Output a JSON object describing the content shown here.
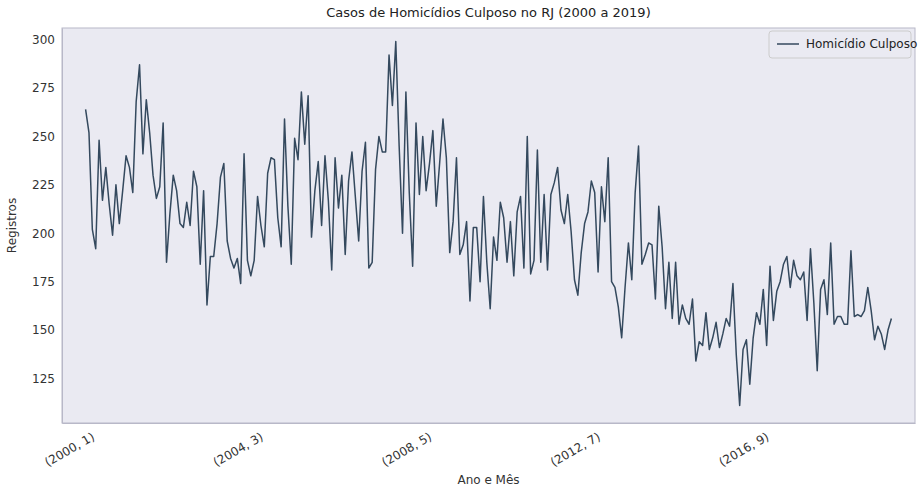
{
  "chart_data": {
    "type": "line",
    "title": "Casos de Homicídios Culposo no RJ (2000 a 2019)",
    "x_label": "Ano e Mês",
    "y_label": "Registros",
    "categories": [
      "(2000, 1)",
      null,
      null,
      null,
      null,
      null,
      null,
      null,
      null,
      null,
      null,
      null,
      null,
      null,
      null,
      null,
      null,
      null,
      null,
      null,
      null,
      null,
      null,
      null,
      null,
      null,
      null,
      null,
      null,
      null,
      null,
      null,
      null,
      null,
      null,
      null,
      null,
      null,
      null,
      null,
      null,
      null,
      null,
      null,
      null,
      null,
      null,
      null,
      null,
      null,
      "(2004, 3)",
      null,
      null,
      null,
      null,
      null,
      null,
      null,
      null,
      null,
      null,
      null,
      null,
      null,
      null,
      null,
      null,
      null,
      null,
      null,
      null,
      null,
      null,
      null,
      null,
      null,
      null,
      null,
      null,
      null,
      null,
      null,
      null,
      null,
      null,
      null,
      null,
      null,
      null,
      null,
      null,
      null,
      null,
      null,
      null,
      null,
      null,
      null,
      null,
      null,
      "(2008, 5)",
      null,
      null,
      null,
      null,
      null,
      null,
      null,
      null,
      null,
      null,
      null,
      null,
      null,
      null,
      null,
      null,
      null,
      null,
      null,
      null,
      null,
      null,
      null,
      null,
      null,
      null,
      null,
      null,
      null,
      null,
      null,
      null,
      null,
      null,
      null,
      null,
      null,
      null,
      null,
      null,
      null,
      null,
      null,
      null,
      null,
      null,
      null,
      null,
      null,
      "(2012, 7)",
      null,
      null,
      null,
      null,
      null,
      null,
      null,
      null,
      null,
      null,
      null,
      null,
      null,
      null,
      null,
      null,
      null,
      null,
      null,
      null,
      null,
      null,
      null,
      null,
      null,
      null,
      null,
      null,
      null,
      null,
      null,
      null,
      null,
      null,
      null,
      null,
      null,
      null,
      null,
      null,
      null,
      null,
      null,
      null,
      null,
      null,
      null,
      null,
      null,
      "(2016, 9)",
      null,
      null,
      null,
      null,
      null,
      null,
      null,
      null,
      null,
      null,
      null,
      null,
      null,
      null,
      null,
      null,
      null,
      null,
      null,
      null,
      null,
      null,
      null,
      null,
      null,
      null,
      null,
      null,
      null,
      null,
      null,
      null,
      null,
      null,
      null,
      null,
      null,
      null,
      null
    ],
    "series": [
      {
        "name": "Homicídio Culposo",
        "color": "#34495e",
        "values": [
          264,
          252,
          202,
          192,
          248,
          217,
          234,
          215,
          199,
          225,
          205,
          222,
          240,
          234,
          221,
          268,
          287,
          241,
          269,
          252,
          230,
          218,
          224,
          257,
          185,
          210,
          230,
          222,
          205,
          203,
          216,
          204,
          232,
          224,
          184,
          222,
          163,
          188,
          188,
          205,
          229,
          236,
          196,
          187,
          182,
          187,
          174,
          241,
          186,
          178,
          186,
          219,
          204,
          193,
          231,
          239,
          238,
          208,
          193,
          259,
          214,
          184,
          249,
          238,
          273,
          246,
          271,
          198,
          222,
          237,
          204,
          240,
          217,
          181,
          239,
          213,
          230,
          189,
          227,
          242,
          219,
          196,
          232,
          247,
          182,
          185,
          233,
          250,
          242,
          242,
          292,
          266,
          299,
          245,
          200,
          273,
          221,
          183,
          257,
          220,
          250,
          222,
          236,
          253,
          214,
          236,
          259,
          239,
          190,
          206,
          239,
          189,
          194,
          206,
          165,
          203,
          203,
          175,
          219,
          185,
          161,
          198,
          186,
          216,
          208,
          185,
          206,
          178,
          211,
          219,
          182,
          250,
          179,
          186,
          243,
          185,
          220,
          181,
          220,
          226,
          234,
          212,
          205,
          220,
          201,
          176,
          168,
          190,
          205,
          211,
          227,
          221,
          180,
          224,
          206,
          239,
          175,
          172,
          162,
          146,
          172,
          195,
          176,
          221,
          245,
          184,
          189,
          195,
          194,
          166,
          214,
          193,
          161,
          185,
          156,
          185,
          153,
          163,
          156,
          153,
          166,
          134,
          144,
          142,
          159,
          140,
          146,
          154,
          141,
          148,
          156,
          152,
          174,
          137,
          111,
          140,
          145,
          122,
          146,
          159,
          153,
          171,
          142,
          183,
          155,
          170,
          175,
          184,
          188,
          172,
          186,
          178,
          176,
          180,
          155,
          192,
          164,
          129,
          171,
          176,
          158,
          195,
          153,
          157,
          157,
          153,
          153,
          191,
          157,
          158,
          157,
          160,
          172,
          160,
          145,
          152,
          148,
          140,
          150,
          156
        ]
      }
    ],
    "ylim": [
      102,
      306
    ],
    "yticks": [
      125,
      150,
      175,
      200,
      225,
      250,
      275,
      300
    ],
    "grid": false,
    "legend": "upper right"
  }
}
